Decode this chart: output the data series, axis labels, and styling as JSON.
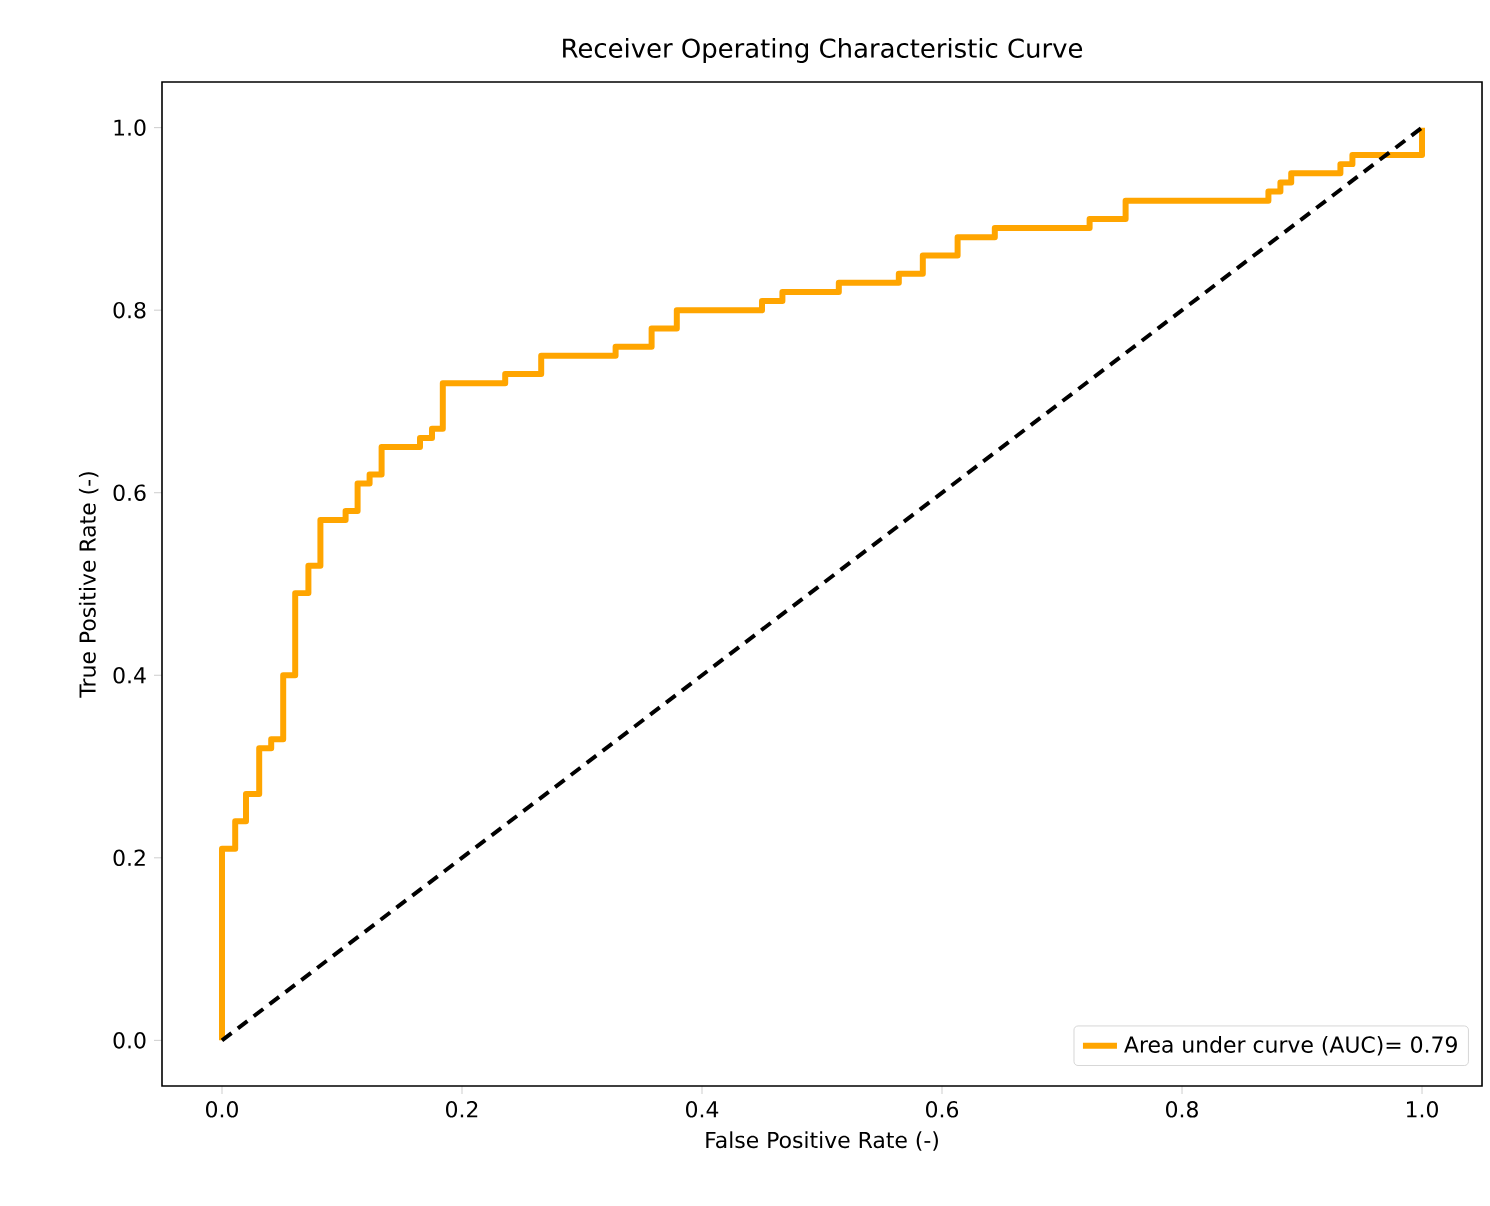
{
  "chart_data": {
    "type": "line",
    "title": "Receiver Operating Characteristic Curve",
    "xlabel": "False Positive Rate (-)",
    "ylabel": "True Positive Rate (-)",
    "xlim": [
      -0.05,
      1.05
    ],
    "ylim": [
      -0.05,
      1.05
    ],
    "xticks": [
      {
        "value": 0,
        "label": "0.0"
      },
      {
        "value": 0.2,
        "label": "0.2"
      },
      {
        "value": 0.4,
        "label": "0.4"
      },
      {
        "value": 0.6,
        "label": "0.6"
      },
      {
        "value": 0.8,
        "label": "0.8"
      },
      {
        "value": 1,
        "label": "1.0"
      }
    ],
    "yticks": [
      {
        "value": 0,
        "label": "0.0"
      },
      {
        "value": 0.2,
        "label": "0.2"
      },
      {
        "value": 0.4,
        "label": "0.4"
      },
      {
        "value": 0.6,
        "label": "0.6"
      },
      {
        "value": 0.8,
        "label": "0.8"
      },
      {
        "value": 1,
        "label": "1.0"
      }
    ],
    "grid": false,
    "legend": "bottom right",
    "series": [
      {
        "name": "Area under curve (AUC)= 0.79",
        "color": "#ffa500",
        "line_style": "solid",
        "x": [
          0,
          0,
          0.011,
          0.011,
          0.02,
          0.02,
          0.031,
          0.031,
          0.041,
          0.041,
          0.051,
          0.051,
          0.061,
          0.061,
          0.072,
          0.072,
          0.082,
          0.082,
          0.103,
          0.103,
          0.113,
          0.113,
          0.123,
          0.123,
          0.133,
          0.133,
          0.165,
          0.165,
          0.175,
          0.175,
          0.184,
          0.184,
          0.236,
          0.236,
          0.266,
          0.266,
          0.328,
          0.328,
          0.358,
          0.358,
          0.379,
          0.379,
          0.45,
          0.45,
          0.467,
          0.467,
          0.514,
          0.514,
          0.564,
          0.564,
          0.584,
          0.584,
          0.613,
          0.613,
          0.644,
          0.644,
          0.723,
          0.723,
          0.753,
          0.753,
          0.872,
          0.872,
          0.882,
          0.882,
          0.891,
          0.891,
          0.932,
          0.932,
          0.942,
          0.942,
          1.0,
          1.0
        ],
        "values": [
          0,
          0.21,
          0.21,
          0.24,
          0.24,
          0.27,
          0.27,
          0.32,
          0.32,
          0.33,
          0.33,
          0.4,
          0.4,
          0.49,
          0.49,
          0.52,
          0.52,
          0.57,
          0.57,
          0.58,
          0.58,
          0.61,
          0.61,
          0.62,
          0.62,
          0.65,
          0.65,
          0.66,
          0.66,
          0.67,
          0.67,
          0.72,
          0.72,
          0.73,
          0.73,
          0.75,
          0.75,
          0.76,
          0.76,
          0.78,
          0.78,
          0.8,
          0.8,
          0.81,
          0.81,
          0.82,
          0.82,
          0.83,
          0.83,
          0.84,
          0.84,
          0.86,
          0.86,
          0.88,
          0.88,
          0.89,
          0.89,
          0.9,
          0.9,
          0.92,
          0.92,
          0.93,
          0.93,
          0.94,
          0.94,
          0.95,
          0.95,
          0.96,
          0.96,
          0.97,
          0.97,
          1.0
        ]
      },
      {
        "color": "#000000",
        "line_style": "dashed",
        "x": [
          0,
          1
        ],
        "values": [
          0,
          1
        ]
      }
    ]
  }
}
